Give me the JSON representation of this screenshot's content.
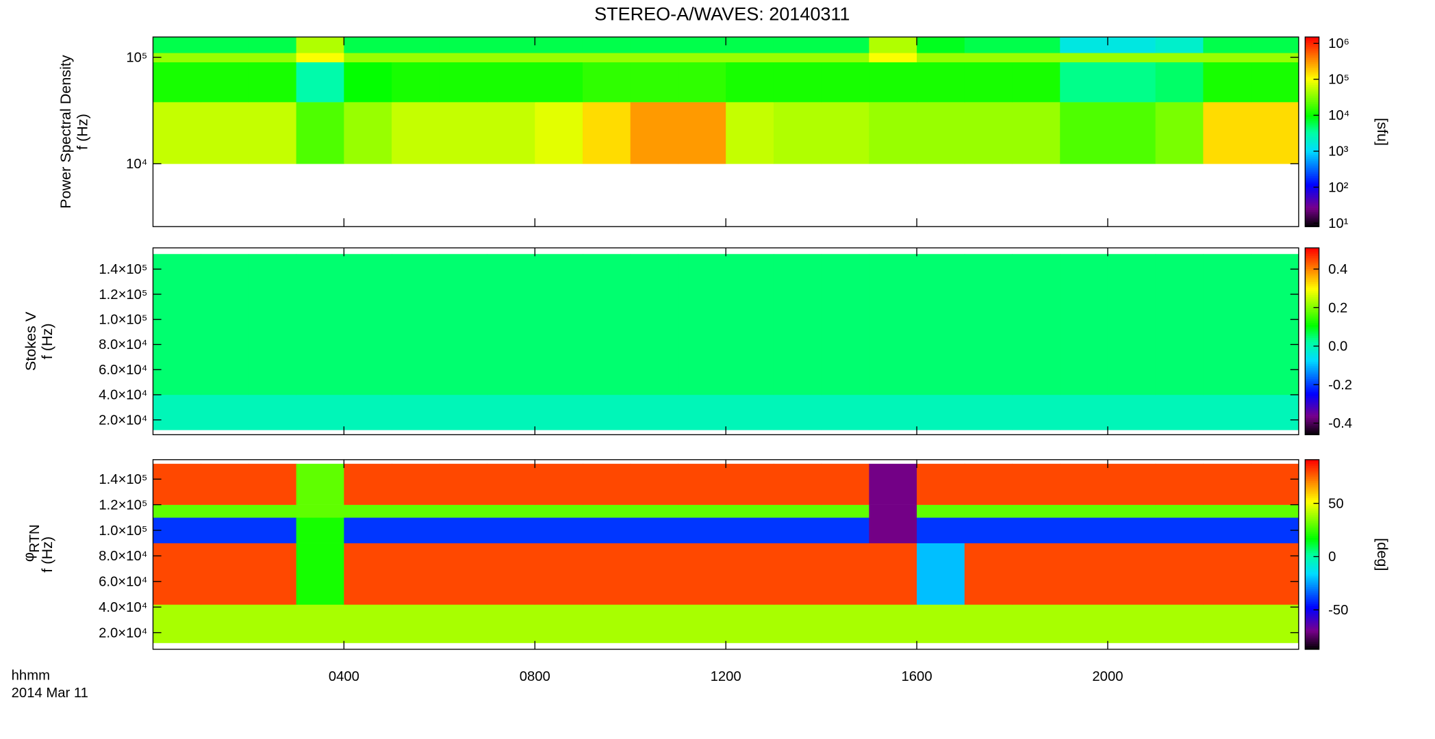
{
  "chart_data": [
    {
      "type": "heatmap",
      "title": "STEREO-A/WAVES: 20140311",
      "ylabel": "Power Spectral Density",
      "ylabel2": "f (Hz)",
      "ylog": true,
      "ylim": [
        2570,
        155000
      ],
      "yticks": [
        {
          "value": 10000,
          "label": "10⁴"
        },
        {
          "value": 100000,
          "label": "10⁵"
        }
      ],
      "xlim": [
        0,
        24
      ],
      "x": [
        0,
        1,
        2,
        3,
        4,
        5,
        6,
        7,
        8,
        9,
        10,
        11,
        12,
        13,
        14,
        15,
        16,
        17,
        18,
        19,
        20,
        21,
        22,
        23,
        24
      ],
      "y": [
        10000,
        38000,
        90000,
        110000,
        155000
      ],
      "z": [
        [
          60000,
          60000,
          60000,
          20000,
          40000,
          60000,
          60000,
          60000,
          80000,
          150000,
          300000,
          300000,
          60000,
          50000,
          50000,
          40000,
          40000,
          40000,
          40000,
          20000,
          20000,
          30000,
          150000,
          150000
        ],
        [
          12000,
          12000,
          12000,
          3000,
          10000,
          12000,
          12000,
          12000,
          12000,
          15000,
          15000,
          15000,
          12000,
          12000,
          12000,
          12000,
          12000,
          12000,
          12000,
          4000,
          4000,
          5000,
          12000,
          12000
        ],
        [
          40000,
          40000,
          40000,
          100000,
          40000,
          40000,
          40000,
          40000,
          40000,
          40000,
          40000,
          40000,
          40000,
          40000,
          40000,
          100000,
          40000,
          40000,
          40000,
          40000,
          40000,
          40000,
          40000,
          40000
        ],
        [
          6000,
          6000,
          6000,
          50000,
          6000,
          6000,
          6000,
          6000,
          6000,
          6000,
          6000,
          6000,
          6000,
          6000,
          6000,
          50000,
          8000,
          6000,
          6000,
          1500,
          1500,
          2000,
          6000,
          6000
        ]
      ],
      "colorbar": {
        "label": "[sfu]",
        "log": true,
        "lim": [
          8,
          1500000
        ],
        "ticks": [
          {
            "value": 10,
            "label": "10¹"
          },
          {
            "value": 100,
            "label": "10²"
          },
          {
            "value": 1000,
            "label": "10³"
          },
          {
            "value": 10000,
            "label": "10⁴"
          },
          {
            "value": 100000,
            "label": "10⁵"
          },
          {
            "value": 1000000,
            "label": "10⁶"
          }
        ]
      }
    },
    {
      "type": "heatmap",
      "ylabel": "Stokes V",
      "ylabel2": "f (Hz)",
      "ylog": false,
      "ylim": [
        8200,
        156900
      ],
      "yticks": [
        {
          "value": 20000,
          "label": "2.0×10⁴"
        },
        {
          "value": 40000,
          "label": "4.0×10⁴"
        },
        {
          "value": 60000,
          "label": "6.0×10⁴"
        },
        {
          "value": 80000,
          "label": "8.0×10⁴"
        },
        {
          "value": 100000,
          "label": "1.0×10⁵"
        },
        {
          "value": 120000,
          "label": "1.2×10⁵"
        },
        {
          "value": 140000,
          "label": "1.4×10⁵"
        }
      ],
      "xlim": [
        0,
        24
      ],
      "x": [
        0,
        1,
        2,
        3,
        4,
        5,
        6,
        7,
        8,
        9,
        10,
        11,
        12,
        13,
        14,
        15,
        16,
        17,
        18,
        19,
        20,
        21,
        22,
        23,
        24
      ],
      "y": [
        12000,
        40000,
        152000
      ],
      "z": [
        [
          0,
          0,
          0,
          0,
          0,
          0,
          0,
          0,
          0,
          0,
          0,
          0,
          0,
          0,
          0,
          0,
          0,
          0,
          0,
          0,
          0,
          0,
          0,
          0
        ],
        [
          0.05,
          0.05,
          0.05,
          0.05,
          0.05,
          0.05,
          0.05,
          0.05,
          0.05,
          0.05,
          0.05,
          0.05,
          0.05,
          0.05,
          0.05,
          0.05,
          0.05,
          0.05,
          0.05,
          0.05,
          0.05,
          0.05,
          0.05,
          0.05
        ]
      ],
      "colorbar": {
        "log": false,
        "lim": [
          -0.46,
          0.51
        ],
        "ticks": [
          -0.4,
          -0.2,
          {
            "value": 0,
            "label": "0.0"
          },
          0.2,
          0.4
        ]
      }
    },
    {
      "type": "heatmap",
      "ylabel": "φ",
      "ylabel_sub": "RTN",
      "ylabel2": "f (Hz)",
      "xlabel": "hhmm",
      "date_label": "2014 Mar 11",
      "ylog": false,
      "ylim": [
        7000,
        155200
      ],
      "yticks": [
        {
          "value": 20000,
          "label": "2.0×10⁴"
        },
        {
          "value": 40000,
          "label": "4.0×10⁴"
        },
        {
          "value": 60000,
          "label": "6.0×10⁴"
        },
        {
          "value": 80000,
          "label": "8.0×10⁴"
        },
        {
          "value": 100000,
          "label": "1.0×10⁵"
        },
        {
          "value": 120000,
          "label": "1.2×10⁵"
        },
        {
          "value": 140000,
          "label": "1.4×10⁵"
        }
      ],
      "xlim": [
        0,
        24
      ],
      "xticks": [
        {
          "value": 4,
          "label": "0400"
        },
        {
          "value": 8,
          "label": "0800"
        },
        {
          "value": 12,
          "label": "1200"
        },
        {
          "value": 16,
          "label": "1600"
        },
        {
          "value": 20,
          "label": "2000"
        }
      ],
      "x": [
        0,
        1,
        2,
        3,
        4,
        5,
        6,
        7,
        8,
        9,
        10,
        11,
        12,
        13,
        14,
        15,
        16,
        17,
        18,
        19,
        20,
        21,
        22,
        23,
        24
      ],
      "y": [
        12000,
        42000,
        90000,
        110000,
        120000,
        152000
      ],
      "z": [
        [
          40,
          40,
          40,
          40,
          40,
          40,
          40,
          40,
          40,
          40,
          40,
          40,
          40,
          40,
          40,
          40,
          40,
          40,
          40,
          40,
          40,
          40,
          40,
          40
        ],
        [
          80,
          80,
          80,
          20,
          80,
          80,
          80,
          80,
          80,
          80,
          80,
          80,
          80,
          80,
          80,
          80,
          -20,
          80,
          80,
          80,
          80,
          80,
          80,
          80
        ],
        [
          -40,
          -40,
          -40,
          20,
          -40,
          -40,
          -40,
          -40,
          -40,
          -40,
          -40,
          -40,
          -40,
          -40,
          -40,
          -70,
          -40,
          -40,
          -40,
          -40,
          -40,
          -40,
          -40,
          -40
        ],
        [
          30,
          30,
          30,
          30,
          30,
          30,
          30,
          30,
          30,
          30,
          30,
          30,
          30,
          30,
          30,
          -70,
          30,
          30,
          30,
          30,
          30,
          30,
          30,
          30
        ],
        [
          80,
          80,
          80,
          30,
          80,
          80,
          80,
          80,
          80,
          80,
          80,
          80,
          80,
          80,
          80,
          -70,
          80,
          80,
          80,
          80,
          80,
          80,
          80,
          80
        ]
      ],
      "colorbar": {
        "label": "[deg]",
        "log": false,
        "lim": [
          -87,
          91
        ],
        "ticks": [
          -50,
          0,
          50
        ]
      }
    }
  ]
}
